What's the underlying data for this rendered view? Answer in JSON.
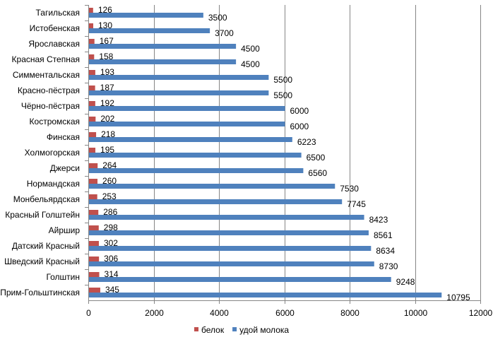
{
  "chart_data": {
    "type": "bar",
    "orientation": "horizontal",
    "categories": [
      "Тагильская",
      "Истобенская",
      "Ярославская",
      "Красная Степная",
      "Симментальская",
      "Красно-пёстрая",
      "Чёрно-пёстрая",
      "Костромская",
      "Финская",
      "Холмогорская",
      "Джерси",
      "Нормандская",
      "Монбельярдская",
      "Красный Голштейн",
      "Айршир",
      "Датский Красный",
      "Шведский Красный",
      "Голштин",
      "Прим-Гольштинская"
    ],
    "series": [
      {
        "name": "белок",
        "color": "#C0504D",
        "values": [
          126,
          130,
          167,
          158,
          193,
          187,
          192,
          202,
          218,
          195,
          264,
          260,
          253,
          286,
          298,
          302,
          306,
          314,
          345
        ]
      },
      {
        "name": "удой молока",
        "color": "#4F81BD",
        "values": [
          3500,
          3700,
          4500,
          4500,
          5500,
          5500,
          6000,
          6000,
          6223,
          6500,
          6560,
          7530,
          7745,
          8423,
          8561,
          8634,
          8730,
          9248,
          10795
        ]
      }
    ],
    "xlim": [
      0,
      12000
    ],
    "x_ticks": [
      0,
      2000,
      4000,
      6000,
      8000,
      10000,
      12000
    ],
    "grid": "vertical",
    "legend_position": "bottom"
  }
}
